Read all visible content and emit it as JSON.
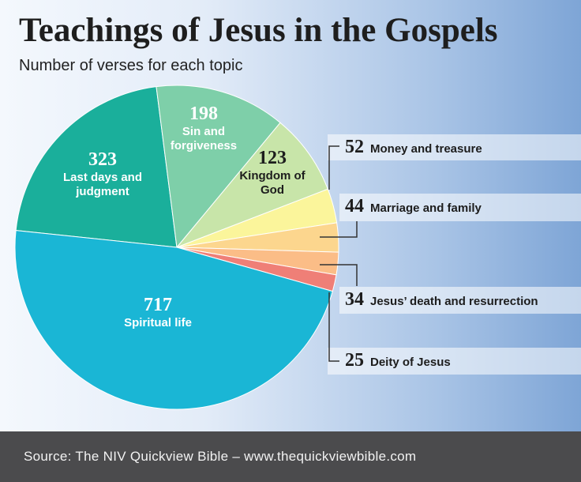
{
  "title": "Teachings of Jesus in the Gospels",
  "subtitle": "Number of verses for each topic",
  "source": "Source: The NIV Quickview Bible – www.thequickviewbible.com",
  "chart_data": {
    "type": "pie",
    "categories": [
      "Last days and judgment",
      "Sin and forgiveness",
      "Kingdom of God",
      "Money and treasure",
      "Marriage and family",
      "Jesus’ death and resurrection",
      "Deity of Jesus",
      "Spiritual life"
    ],
    "values": [
      323,
      198,
      123,
      52,
      44,
      34,
      25,
      717
    ],
    "colors": [
      "#1aaf9b",
      "#7ecfa9",
      "#c8e5a9",
      "#fbf59b",
      "#fcd68e",
      "#fbbd87",
      "#ef7f77",
      "#1ab6d5"
    ]
  }
}
